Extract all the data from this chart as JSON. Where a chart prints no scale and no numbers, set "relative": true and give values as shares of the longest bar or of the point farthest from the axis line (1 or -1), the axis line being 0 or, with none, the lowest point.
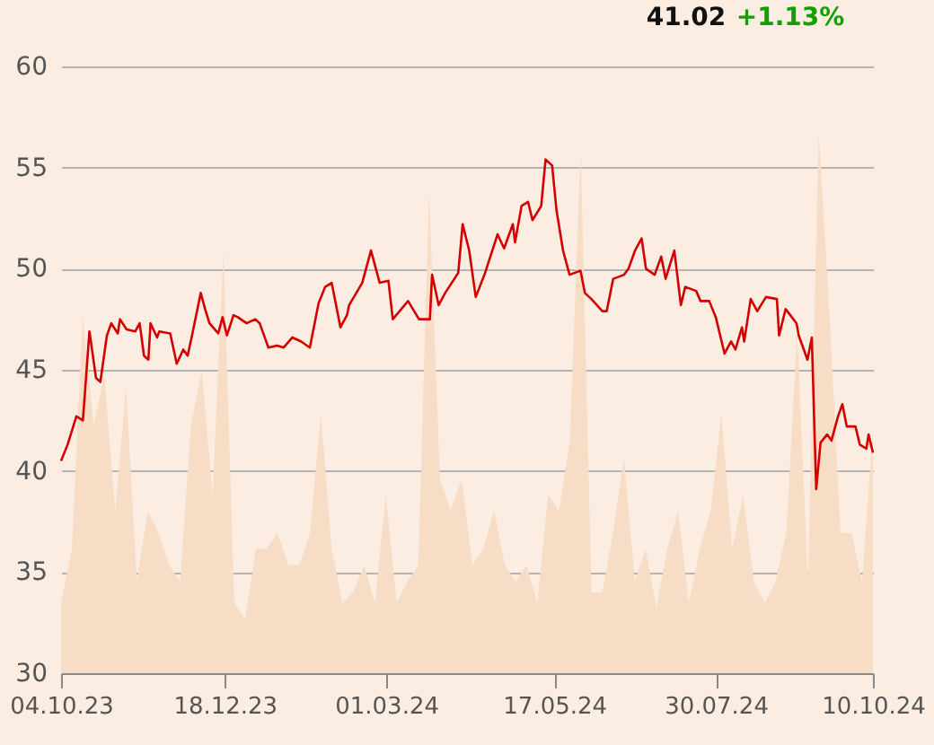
{
  "chart_data": [
    {
      "type": "area",
      "relative": true,
      "color": "#f7dcc6",
      "categories": [
        null,
        null,
        null,
        null,
        null,
        null,
        null,
        null,
        null,
        null,
        null,
        null,
        null,
        null,
        null,
        null,
        null,
        null,
        null,
        null,
        null,
        null,
        null,
        null,
        null,
        null,
        null,
        null,
        null,
        null,
        null,
        null,
        null,
        null,
        null,
        null,
        null,
        null,
        null,
        null,
        null,
        null,
        null,
        null,
        null,
        null,
        null,
        null,
        null,
        null,
        null,
        null,
        null,
        null,
        null,
        null,
        null,
        null,
        null,
        null,
        null,
        null,
        null,
        null,
        null,
        null,
        null,
        null,
        null,
        null,
        null,
        null,
        null,
        null,
        null,
        null
      ],
      "values": [
        0.13,
        0.23,
        0.66,
        0.46,
        0.55,
        0.3,
        0.53,
        0.17,
        0.3,
        0.26,
        0.2,
        0.17,
        0.46,
        0.56,
        0.33,
        0.78,
        0.13,
        0.1,
        0.23,
        0.23,
        0.26,
        0.2,
        0.2,
        0.26,
        0.48,
        0.23,
        0.13,
        0.15,
        0.2,
        0.13,
        0.33,
        0.13,
        0.17,
        0.2,
        0.89,
        0.36,
        0.3,
        0.36,
        0.2,
        0.23,
        0.3,
        0.2,
        0.17,
        0.2,
        0.13,
        0.33,
        0.3,
        0.43,
        0.97,
        0.15,
        0.15,
        0.26,
        0.4,
        0.17,
        0.23,
        0.12,
        0.23,
        0.3,
        0.13,
        0.23,
        0.3,
        0.48,
        0.23,
        0.33,
        0.17,
        0.13,
        0.17,
        0.26,
        0.63,
        0.17,
        1,
        0.66,
        0.26,
        0.26,
        0.17,
        0.45
      ]
    },
    {
      "type": "line",
      "annotations": [
        "41.02",
        "+1.13%"
      ],
      "color": "#d40000",
      "grid": "y",
      "x": [
        "2023-10-04",
        "2023-10-07",
        "2023-10-11",
        "2023-10-14",
        "2023-10-17",
        "2023-10-20",
        "2023-10-22",
        "2023-10-25",
        "2023-10-27",
        "2023-10-30",
        "2023-10-31",
        "2023-11-03",
        "2023-11-07",
        "2023-11-09",
        "2023-11-11",
        "2023-11-13",
        "2023-11-14",
        "2023-11-17",
        "2023-11-18",
        "2023-11-23",
        "2023-11-26",
        "2023-11-29",
        "2023-12-01",
        "2023-12-03",
        "2023-12-07",
        "2023-12-09",
        "2023-12-11",
        "2023-12-15",
        "2023-12-17",
        "2023-12-19",
        "2023-12-22",
        "2023-12-24",
        "2023-12-28",
        "2024-01-01",
        "2024-01-03",
        "2024-01-07",
        "2024-01-11",
        "2024-01-14",
        "2024-01-18",
        "2024-01-22",
        "2024-01-26",
        "2024-01-30",
        "2024-02-02",
        "2024-02-05",
        "2024-02-09",
        "2024-02-12",
        "2024-02-13",
        "2024-02-19",
        "2024-02-23",
        "2024-02-27",
        "2024-03-02",
        "2024-03-04",
        "2024-03-11",
        "2024-03-16",
        "2024-03-21",
        "2024-03-22",
        "2024-03-25",
        "2024-03-28",
        "2024-04-03",
        "2024-04-05",
        "2024-04-08",
        "2024-04-11",
        "2024-04-15",
        "2024-04-18",
        "2024-04-21",
        "2024-04-24",
        "2024-04-28",
        "2024-04-29",
        "2024-05-02",
        "2024-05-05",
        "2024-05-07",
        "2024-05-11",
        "2024-05-13",
        "2024-05-16",
        "2024-05-18",
        "2024-05-21",
        "2024-05-24",
        "2024-05-29",
        "2024-05-31",
        "2024-06-03",
        "2024-06-08",
        "2024-06-10",
        "2024-06-13",
        "2024-06-18",
        "2024-06-20",
        "2024-06-23",
        "2024-06-26",
        "2024-06-28",
        "2024-07-02",
        "2024-07-05",
        "2024-07-07",
        "2024-07-11",
        "2024-07-14",
        "2024-07-16",
        "2024-07-21",
        "2024-07-23",
        "2024-07-27",
        "2024-07-30",
        "2024-08-03",
        "2024-08-06",
        "2024-08-08",
        "2024-08-11",
        "2024-08-12",
        "2024-08-15",
        "2024-08-18",
        "2024-08-22",
        "2024-08-27",
        "2024-08-28",
        "2024-08-31",
        "2024-09-05",
        "2024-09-06",
        "2024-09-10",
        "2024-09-12",
        "2024-09-14",
        "2024-09-16",
        "2024-09-19",
        "2024-09-21",
        "2024-09-24",
        "2024-09-26",
        "2024-09-28",
        "2024-10-02",
        "2024-10-04",
        "2024-10-07",
        "2024-10-08",
        "2024-10-10"
      ],
      "values": [
        40.5,
        41.3,
        42.7,
        42.5,
        46.9,
        44.6,
        44.4,
        46.7,
        47.3,
        46.8,
        47.5,
        47.0,
        46.9,
        47.3,
        45.7,
        45.5,
        47.3,
        46.6,
        46.9,
        46.8,
        45.3,
        46.0,
        45.7,
        46.7,
        48.8,
        48.0,
        47.3,
        46.8,
        47.6,
        46.7,
        47.7,
        47.6,
        47.3,
        47.5,
        47.3,
        46.1,
        46.2,
        46.1,
        46.6,
        46.4,
        46.1,
        48.3,
        49.1,
        49.3,
        47.1,
        47.7,
        48.2,
        49.3,
        50.9,
        49.3,
        49.4,
        47.5,
        48.4,
        47.5,
        47.5,
        49.7,
        48.2,
        48.8,
        49.8,
        52.2,
        50.9,
        48.6,
        49.7,
        50.7,
        51.7,
        51.0,
        52.2,
        51.3,
        53.1,
        53.3,
        52.4,
        53.1,
        55.4,
        55.1,
        52.9,
        50.9,
        49.7,
        49.9,
        48.8,
        48.5,
        47.9,
        47.9,
        49.5,
        49.7,
        50.0,
        50.9,
        51.5,
        50.0,
        49.7,
        50.6,
        49.5,
        50.9,
        48.2,
        49.1,
        48.9,
        48.4,
        48.4,
        47.6,
        45.8,
        46.4,
        46.0,
        47.1,
        46.4,
        48.5,
        47.9,
        48.6,
        48.5,
        46.7,
        48.0,
        47.3,
        46.7,
        45.5,
        46.6,
        39.1,
        41.4,
        41.8,
        41.5,
        42.7,
        43.3,
        42.2,
        42.2,
        41.3,
        41.1,
        41.8,
        40.9
      ],
      "xlim": [
        "2023-10-04",
        "2024-10-10"
      ],
      "xticks": [
        {
          "value": "2023-10-04",
          "label": "04.10.23"
        },
        {
          "value": "2023-12-18",
          "label": "18.12.23"
        },
        {
          "value": "2024-03-01",
          "label": "01.03.24"
        },
        {
          "value": "2024-05-17",
          "label": "17.05.24"
        },
        {
          "value": "2024-07-30",
          "label": "30.07.24"
        },
        {
          "value": "2024-10-10",
          "label": "10.10.24"
        }
      ],
      "ylim": [
        30,
        60
      ],
      "yticks": [
        30,
        35,
        40,
        45,
        50,
        55,
        60
      ]
    }
  ]
}
